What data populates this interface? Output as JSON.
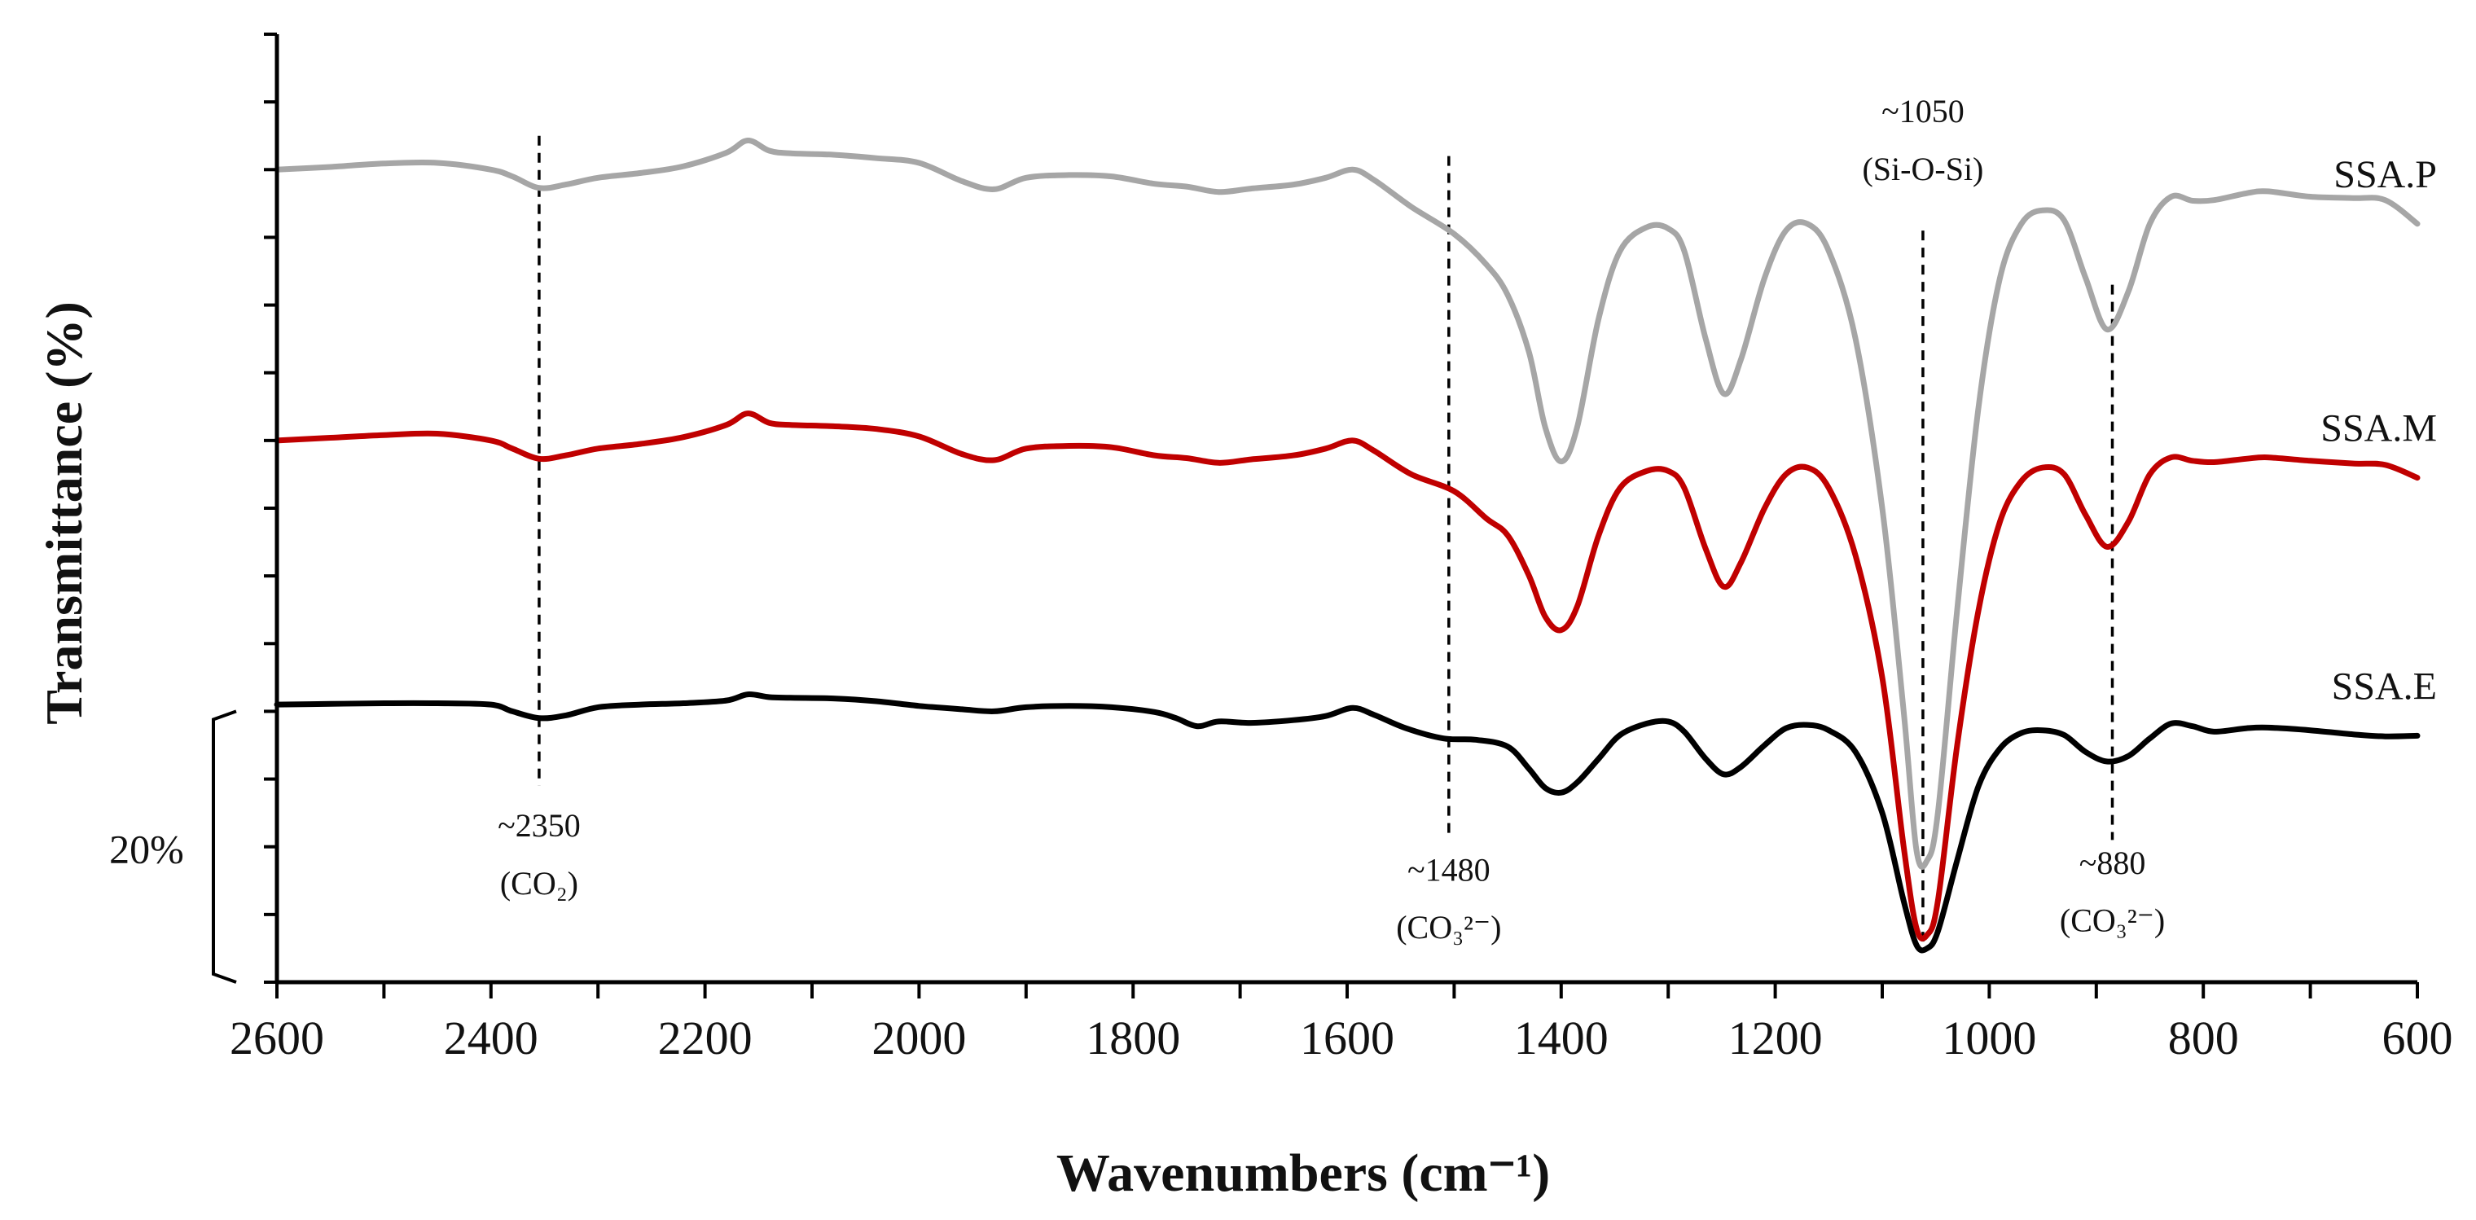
{
  "chart_data": {
    "type": "line",
    "title": "",
    "xlabel": "Wavenumbers (cm⁻¹)",
    "ylabel": "Transmittance (%)",
    "xlim": [
      2600,
      600
    ],
    "x_reversed": true,
    "x_ticks": [
      "2600",
      "2400",
      "2200",
      "2000",
      "1800",
      "1600",
      "1400",
      "1200",
      "1000",
      "800",
      "600"
    ],
    "ylim": [
      0,
      140
    ],
    "grid": false,
    "scale_bar": {
      "label": "20%",
      "from": 0,
      "to": 40
    },
    "series": [
      {
        "name": "SSA.P",
        "color": "#a6a6a6",
        "points": [
          [
            2600,
            120.0
          ],
          [
            2550,
            120.4
          ],
          [
            2500,
            120.9
          ],
          [
            2450,
            121.0
          ],
          [
            2400,
            120.0
          ],
          [
            2380,
            119.0
          ],
          [
            2355,
            117.3
          ],
          [
            2330,
            117.8
          ],
          [
            2300,
            118.8
          ],
          [
            2260,
            119.5
          ],
          [
            2220,
            120.5
          ],
          [
            2180,
            122.5
          ],
          [
            2160,
            124.3
          ],
          [
            2140,
            122.8
          ],
          [
            2120,
            122.4
          ],
          [
            2080,
            122.2
          ],
          [
            2040,
            121.7
          ],
          [
            2000,
            121.0
          ],
          [
            1960,
            118.3
          ],
          [
            1930,
            117.1
          ],
          [
            1900,
            118.8
          ],
          [
            1860,
            119.2
          ],
          [
            1820,
            119.0
          ],
          [
            1780,
            117.9
          ],
          [
            1750,
            117.5
          ],
          [
            1720,
            116.7
          ],
          [
            1690,
            117.2
          ],
          [
            1650,
            117.8
          ],
          [
            1620,
            118.8
          ],
          [
            1595,
            120.0
          ],
          [
            1575,
            118.5
          ],
          [
            1540,
            114.5
          ],
          [
            1500,
            110.5
          ],
          [
            1470,
            106.0
          ],
          [
            1450,
            101.5
          ],
          [
            1430,
            93.0
          ],
          [
            1415,
            82.0
          ],
          [
            1400,
            76.9
          ],
          [
            1385,
            82.0
          ],
          [
            1365,
            98.0
          ],
          [
            1345,
            108.0
          ],
          [
            1320,
            111.5
          ],
          [
            1300,
            111.3
          ],
          [
            1285,
            108.0
          ],
          [
            1265,
            95.0
          ],
          [
            1248,
            86.9
          ],
          [
            1232,
            92.0
          ],
          [
            1210,
            104.0
          ],
          [
            1190,
            111.0
          ],
          [
            1170,
            112.0
          ],
          [
            1150,
            108.0
          ],
          [
            1125,
            95.0
          ],
          [
            1100,
            70.0
          ],
          [
            1080,
            40.0
          ],
          [
            1068,
            19.5
          ],
          [
            1058,
            18.0
          ],
          [
            1048,
            25.0
          ],
          [
            1030,
            55.0
          ],
          [
            1010,
            85.0
          ],
          [
            990,
            104.0
          ],
          [
            970,
            112.0
          ],
          [
            950,
            114.0
          ],
          [
            930,
            112.5
          ],
          [
            910,
            104.0
          ],
          [
            890,
            96.4
          ],
          [
            870,
            102.0
          ],
          [
            850,
            112.0
          ],
          [
            830,
            116.0
          ],
          [
            810,
            115.4
          ],
          [
            790,
            115.5
          ],
          [
            760,
            116.5
          ],
          [
            740,
            116.8
          ],
          [
            700,
            116.0
          ],
          [
            660,
            115.8
          ],
          [
            630,
            115.5
          ],
          [
            600,
            112.0
          ]
        ]
      },
      {
        "name": "SSA.M",
        "color": "#c00000",
        "points": [
          [
            2600,
            80.0
          ],
          [
            2550,
            80.4
          ],
          [
            2500,
            80.8
          ],
          [
            2450,
            81.0
          ],
          [
            2400,
            80.0
          ],
          [
            2380,
            78.8
          ],
          [
            2355,
            77.3
          ],
          [
            2330,
            77.8
          ],
          [
            2300,
            78.8
          ],
          [
            2260,
            79.5
          ],
          [
            2220,
            80.5
          ],
          [
            2180,
            82.3
          ],
          [
            2160,
            84.0
          ],
          [
            2140,
            82.6
          ],
          [
            2120,
            82.3
          ],
          [
            2080,
            82.1
          ],
          [
            2040,
            81.7
          ],
          [
            2000,
            80.6
          ],
          [
            1960,
            78.0
          ],
          [
            1930,
            77.1
          ],
          [
            1900,
            78.8
          ],
          [
            1860,
            79.2
          ],
          [
            1820,
            79.0
          ],
          [
            1780,
            77.8
          ],
          [
            1750,
            77.4
          ],
          [
            1720,
            76.7
          ],
          [
            1690,
            77.2
          ],
          [
            1650,
            77.8
          ],
          [
            1620,
            78.8
          ],
          [
            1595,
            80.0
          ],
          [
            1575,
            78.5
          ],
          [
            1540,
            75.0
          ],
          [
            1500,
            72.5
          ],
          [
            1470,
            68.5
          ],
          [
            1450,
            66.0
          ],
          [
            1430,
            60.0
          ],
          [
            1415,
            54.0
          ],
          [
            1400,
            52.0
          ],
          [
            1385,
            55.5
          ],
          [
            1365,
            66.0
          ],
          [
            1345,
            73.0
          ],
          [
            1320,
            75.5
          ],
          [
            1300,
            75.5
          ],
          [
            1285,
            73.0
          ],
          [
            1265,
            64.0
          ],
          [
            1248,
            58.4
          ],
          [
            1232,
            62.0
          ],
          [
            1210,
            70.0
          ],
          [
            1190,
            75.0
          ],
          [
            1170,
            76.0
          ],
          [
            1150,
            73.0
          ],
          [
            1125,
            63.0
          ],
          [
            1100,
            45.0
          ],
          [
            1080,
            20.0
          ],
          [
            1068,
            8.0
          ],
          [
            1058,
            7.0
          ],
          [
            1048,
            12.0
          ],
          [
            1030,
            35.0
          ],
          [
            1010,
            55.0
          ],
          [
            990,
            68.0
          ],
          [
            970,
            74.0
          ],
          [
            950,
            76.0
          ],
          [
            930,
            75.0
          ],
          [
            910,
            69.0
          ],
          [
            890,
            64.3
          ],
          [
            870,
            68.0
          ],
          [
            850,
            75.0
          ],
          [
            830,
            77.5
          ],
          [
            810,
            77.0
          ],
          [
            790,
            76.8
          ],
          [
            760,
            77.3
          ],
          [
            740,
            77.5
          ],
          [
            700,
            77.0
          ],
          [
            660,
            76.6
          ],
          [
            630,
            76.4
          ],
          [
            600,
            74.5
          ]
        ]
      },
      {
        "name": "SSA.E",
        "color": "#000000",
        "points": [
          [
            2600,
            41.0
          ],
          [
            2550,
            41.1
          ],
          [
            2500,
            41.2
          ],
          [
            2450,
            41.2
          ],
          [
            2400,
            41.0
          ],
          [
            2380,
            40.0
          ],
          [
            2355,
            39.0
          ],
          [
            2330,
            39.4
          ],
          [
            2300,
            40.6
          ],
          [
            2260,
            41.0
          ],
          [
            2220,
            41.2
          ],
          [
            2180,
            41.6
          ],
          [
            2160,
            42.5
          ],
          [
            2140,
            42.1
          ],
          [
            2120,
            42.0
          ],
          [
            2080,
            41.9
          ],
          [
            2040,
            41.5
          ],
          [
            2000,
            40.8
          ],
          [
            1960,
            40.3
          ],
          [
            1930,
            40.0
          ],
          [
            1900,
            40.6
          ],
          [
            1860,
            40.8
          ],
          [
            1820,
            40.6
          ],
          [
            1780,
            39.9
          ],
          [
            1760,
            39.0
          ],
          [
            1740,
            37.8
          ],
          [
            1720,
            38.5
          ],
          [
            1690,
            38.3
          ],
          [
            1650,
            38.7
          ],
          [
            1620,
            39.3
          ],
          [
            1595,
            40.5
          ],
          [
            1575,
            39.5
          ],
          [
            1545,
            37.5
          ],
          [
            1510,
            36.0
          ],
          [
            1480,
            35.8
          ],
          [
            1450,
            34.8
          ],
          [
            1430,
            31.5
          ],
          [
            1415,
            28.7
          ],
          [
            1400,
            28.0
          ],
          [
            1385,
            29.5
          ],
          [
            1365,
            33.0
          ],
          [
            1345,
            36.5
          ],
          [
            1320,
            38.2
          ],
          [
            1300,
            38.5
          ],
          [
            1285,
            37.0
          ],
          [
            1265,
            33.0
          ],
          [
            1248,
            30.7
          ],
          [
            1232,
            31.8
          ],
          [
            1210,
            35.0
          ],
          [
            1190,
            37.5
          ],
          [
            1170,
            38.0
          ],
          [
            1150,
            37.2
          ],
          [
            1125,
            34.0
          ],
          [
            1100,
            25.0
          ],
          [
            1080,
            12.0
          ],
          [
            1068,
            5.5
          ],
          [
            1058,
            5.0
          ],
          [
            1048,
            7.5
          ],
          [
            1030,
            18.0
          ],
          [
            1010,
            29.0
          ],
          [
            990,
            34.5
          ],
          [
            970,
            36.8
          ],
          [
            950,
            37.2
          ],
          [
            930,
            36.5
          ],
          [
            910,
            34.0
          ],
          [
            890,
            32.6
          ],
          [
            870,
            33.4
          ],
          [
            850,
            36.0
          ],
          [
            830,
            38.2
          ],
          [
            810,
            37.8
          ],
          [
            790,
            37.0
          ],
          [
            760,
            37.5
          ],
          [
            740,
            37.6
          ],
          [
            700,
            37.2
          ],
          [
            660,
            36.6
          ],
          [
            630,
            36.3
          ],
          [
            600,
            36.4
          ]
        ]
      }
    ],
    "reference_lines": [
      {
        "x": 2355,
        "label": "~2350",
        "sublabel": "(CO₂)",
        "y_top": 125,
        "y_bottom": 29,
        "label_y": 21.5,
        "sublabel_y": 13
      },
      {
        "x": 1505,
        "label": "~1480",
        "sublabel": "(CO₃²⁻)",
        "y_top": 122,
        "y_bottom": 22,
        "label_y": 15,
        "sublabel_y": 6.5
      },
      {
        "x": 1062,
        "label": "~1050",
        "sublabel": "(Si-O-Si)",
        "y_top": 111,
        "y_bottom": 5,
        "label_y": 127,
        "sublabel_y": 118.5
      },
      {
        "x": 885,
        "label": "~880",
        "sublabel": "(CO₃²⁻)",
        "y_top": 103,
        "y_bottom": 21,
        "label_y": 16,
        "sublabel_y": 7.5
      }
    ],
    "annotations": [
      {
        "text": "~2350",
        "x": 2355
      },
      {
        "text": "(CO₂)",
        "x": 2355
      },
      {
        "text": "~1480",
        "x": 1480
      },
      {
        "text": "(CO₃²⁻)",
        "x": 1480
      },
      {
        "text": "~1050",
        "x": 1050
      },
      {
        "text": "(Si-O-Si)",
        "x": 1050
      },
      {
        "text": "~880",
        "x": 880
      },
      {
        "text": "(CO₃²⁻)",
        "x": 880
      }
    ],
    "legend": "inline-right"
  }
}
